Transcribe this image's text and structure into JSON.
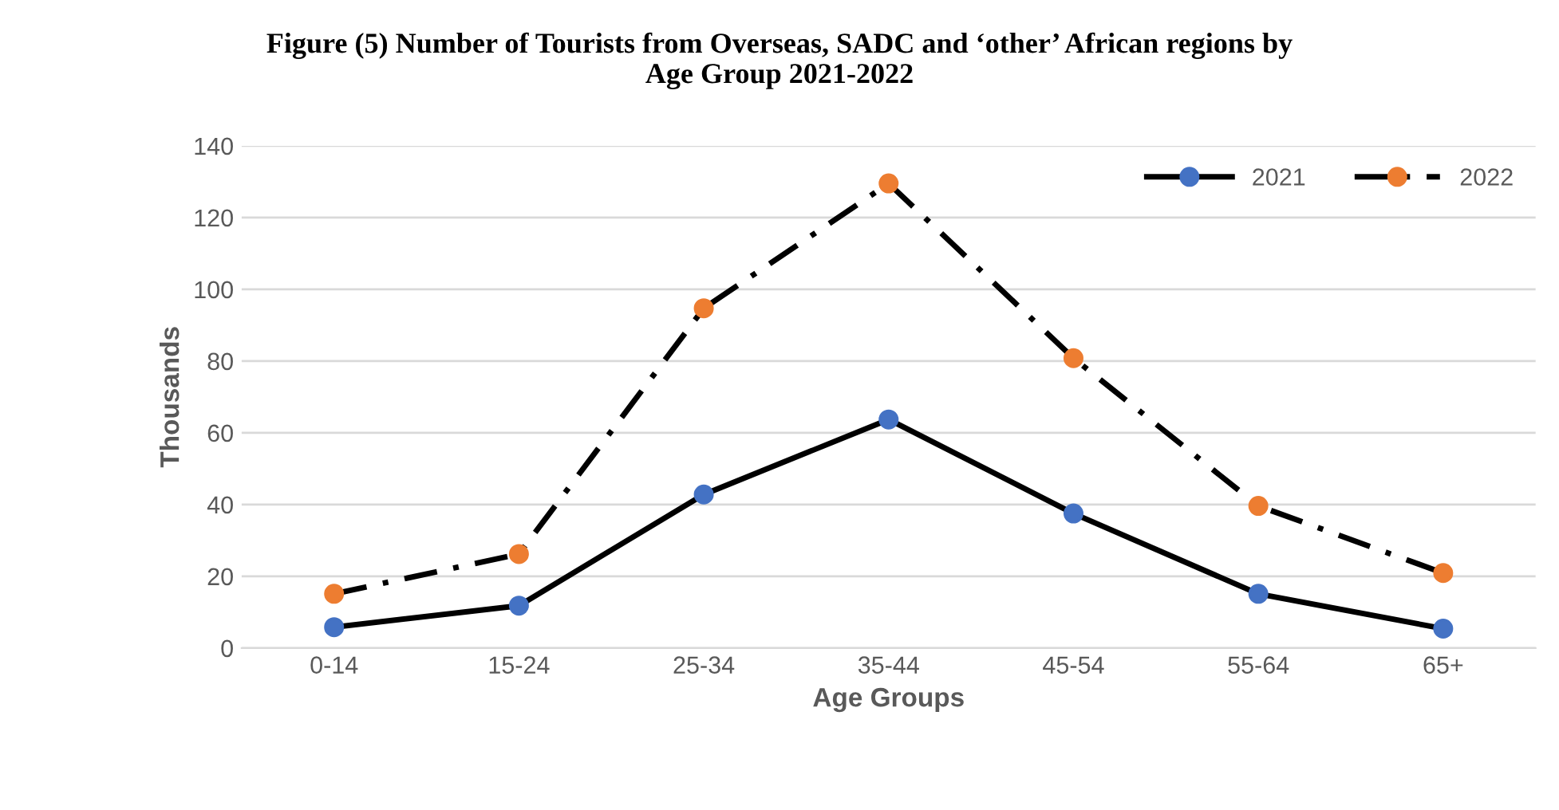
{
  "chart_data": {
    "type": "line",
    "title": "Figure (5) Number of Tourists from Overseas, SADC and ‘other’ African regions by\nAge Group 2021-2022",
    "xlabel": "Age Groups",
    "ylabel": "Thousands",
    "categories": [
      "0-14",
      "15-24",
      "25-34",
      "35-44",
      "45-54",
      "55-64",
      "65+"
    ],
    "series": [
      {
        "name": "2021",
        "color": "#4472c4",
        "line_style": "solid",
        "values": [
          5.8,
          11.8,
          42.8,
          63.7,
          37.5,
          15.1,
          5.4
        ]
      },
      {
        "name": "2022",
        "color": "#ed7d31",
        "line_style": "dashdot",
        "values": [
          15.1,
          26.2,
          94.7,
          129.5,
          80.8,
          39.6,
          20.9
        ]
      }
    ],
    "ylim": [
      0,
      140
    ],
    "yticks": [
      0,
      20,
      40,
      60,
      80,
      100,
      120,
      140
    ],
    "grid": "y",
    "legend": "top right",
    "marker": "circle"
  }
}
